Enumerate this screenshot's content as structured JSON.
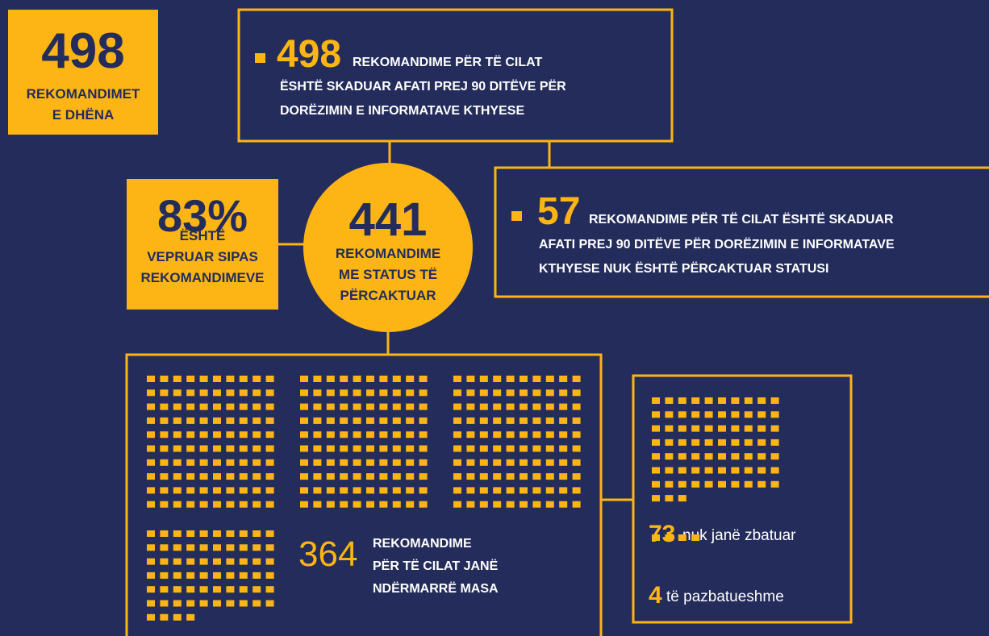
{
  "total": {
    "value": 498,
    "lines": [
      "REKOMANDIMET",
      "E DHËNA"
    ]
  },
  "expired": {
    "value": 498,
    "lines": [
      "REKOMANDIME PËR TË CILAT",
      "ËSHTË SKADUAR AFATI PREJ 90 DITËVE PËR",
      "DORËZIMIN E INFORMATAVE KTHYESE"
    ]
  },
  "undetermined": {
    "value": 57,
    "lines": [
      "REKOMANDIME PËR TË CILAT ËSHTË SKADUAR",
      "AFATI PREJ 90 DITËVE PËR DORËZIMIN E INFORMATAVE",
      "KTHYESE NUK ËSHTË PËRCAKTUAR STATUSI"
    ]
  },
  "determined": {
    "value": 441,
    "lines": [
      "REKOMANDIME",
      "ME STATUS TË",
      "PËRCAKTUAR"
    ]
  },
  "acted": {
    "value": 83,
    "value_label": "83%",
    "lines": [
      "ËSHTË",
      "VEPRUAR SIPAS",
      "REKOMANDIMEVE"
    ]
  },
  "measures": {
    "value": 364,
    "lines": [
      "REKOMANDIME",
      "PËR TË CILAT JANË",
      "NDËRMARRË MASA"
    ]
  },
  "not_implemented": {
    "value": 73,
    "label": "nuk janë zbatuar"
  },
  "unimplementable": {
    "value": 4,
    "label": "të pazbatueshme"
  }
}
